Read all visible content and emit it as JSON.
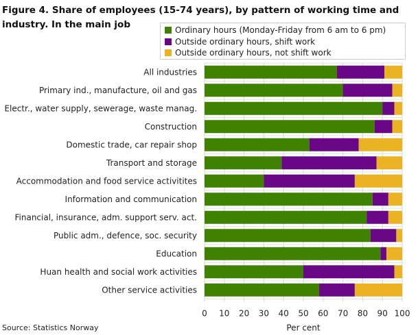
{
  "chart_data": {
    "type": "bar",
    "orientation": "horizontal",
    "stacked": true,
    "title": "Figure 4. Share of employees (15-74 years), by pattern of working time and industry. In the main job",
    "xlabel": "Per cent",
    "ylabel": "",
    "xlim": [
      0,
      100
    ],
    "xticks": [
      0,
      10,
      20,
      30,
      40,
      50,
      60,
      70,
      80,
      90,
      100
    ],
    "grid": true,
    "legend_position": "top-right",
    "categories": [
      "All industries",
      "Primary ind., manufacture, oil and gas",
      "Electr., water supply, sewerage, waste manag.",
      "Construction",
      "Domestic trade, car repair shop",
      "Transport and storage",
      "Accommodation and food service activitites",
      "Information and communication",
      "Financial, insurance, adm. support serv. act.",
      "Public adm., defence, soc. security",
      "Education",
      "Huan health and social work activities",
      "Other service activities"
    ],
    "series": [
      {
        "name": "Ordinary hours (Monday-Friday from 6 am to 6 pm)",
        "color": "#3e8200",
        "values": [
          67,
          70,
          90,
          86,
          53,
          39,
          30,
          85,
          82,
          84,
          89,
          50,
          58
        ]
      },
      {
        "name": "Outside ordinary hours, shift work",
        "color": "#690787",
        "values": [
          24,
          25,
          6,
          9,
          25,
          48,
          46,
          8,
          11,
          13,
          3,
          46,
          18
        ]
      },
      {
        "name": "Outside ordinary hours, not shift work",
        "color": "#ebb323",
        "values": [
          9,
          5,
          4,
          5,
          22,
          13,
          24,
          7,
          7,
          3,
          8,
          4,
          24
        ]
      }
    ],
    "source": "Source: Statistics Norway"
  }
}
